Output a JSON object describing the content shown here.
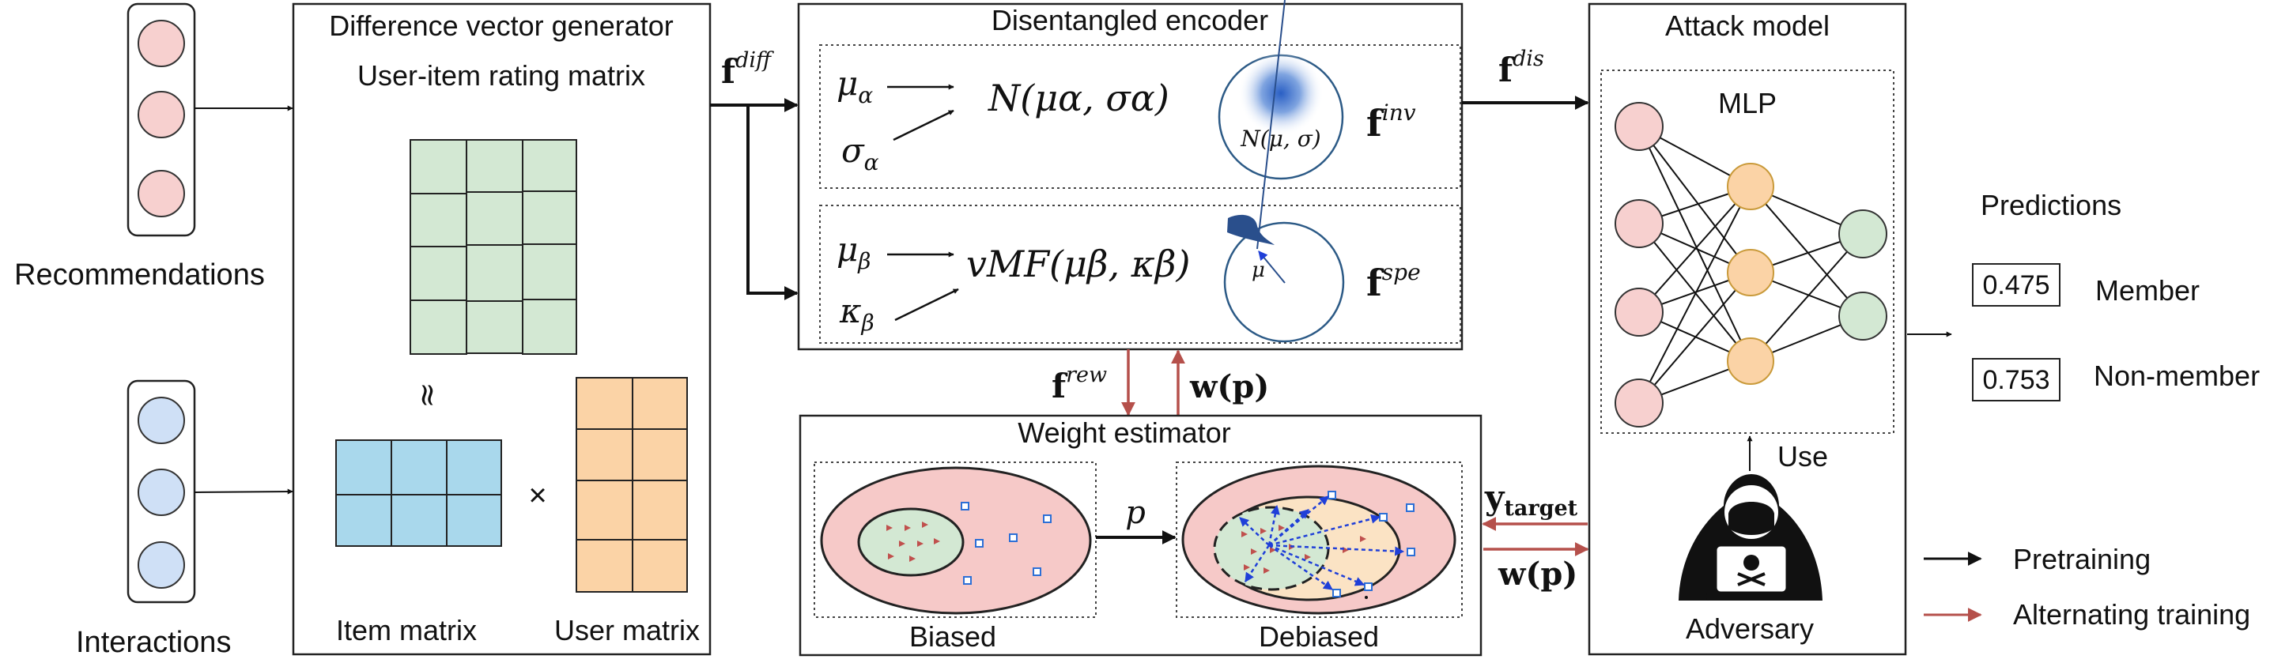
{
  "left": {
    "recommendations_label": "Recommendations",
    "interactions_label": "Interactions"
  },
  "generator": {
    "title": "Difference vector generator",
    "rating_matrix_label": "User-item rating matrix",
    "approx_symbol": "≈",
    "times_symbol": "×",
    "item_matrix_label": "Item matrix",
    "user_matrix_label": "User matrix"
  },
  "encoder": {
    "title": "Disentangled encoder",
    "mu_alpha": "μ",
    "mu_alpha_sub": "α",
    "sigma_alpha": "σ",
    "sigma_alpha_sub": "α",
    "normal_formula": "N(μα, σα)",
    "gauss_label": "N(μ, σ)",
    "f_inv": "f",
    "f_inv_sup": "inv",
    "mu_beta": "μ",
    "mu_beta_sub": "β",
    "kappa_beta": "κ",
    "kappa_beta_sub": "β",
    "vmf_formula": "vMF(μβ, κβ)",
    "vmf_mu": "μ",
    "f_spe": "f",
    "f_spe_sup": "spe"
  },
  "arrows": {
    "f_diff": "f",
    "f_diff_sup": "diff",
    "f_dis": "f",
    "f_dis_sup": "dis",
    "f_rew": "f",
    "f_rew_sup": "rew",
    "w_p_top": "w(p)",
    "y_target": "y",
    "y_target_sub": "target",
    "w_p_right": "w(p)",
    "p_label": "p"
  },
  "weight": {
    "title": "Weight estimator",
    "biased_label": "Biased",
    "debiased_label": "Debiased"
  },
  "attack": {
    "title": "Attack model",
    "mlp_label": "MLP",
    "use_label": "Use",
    "adversary_label": "Adversary"
  },
  "predictions": {
    "title": "Predictions",
    "member_value": "0.475",
    "member_label": "Member",
    "nonmember_value": "0.753",
    "nonmember_label": "Non-member"
  },
  "legend": {
    "pretraining_label": "Pretraining",
    "alternating_label": "Alternating training"
  },
  "colors": {
    "arrow_black": "#111111",
    "arrow_red": "#b5504b",
    "rec_node": "#f7d0cf",
    "int_node": "#cfe0f6",
    "rating_cell": "#d3e8d3",
    "item_cell": "#a9d8ec",
    "user_cell": "#fbd3a6",
    "mlp_input": "#f7d0cf",
    "mlp_hidden": "#fbd3a6",
    "mlp_output": "#d3e8d3",
    "ellipse_outer": "#f6c9c8",
    "ellipse_inner": "#d3e8d3",
    "ellipse_mid": "#fbe3c4"
  }
}
